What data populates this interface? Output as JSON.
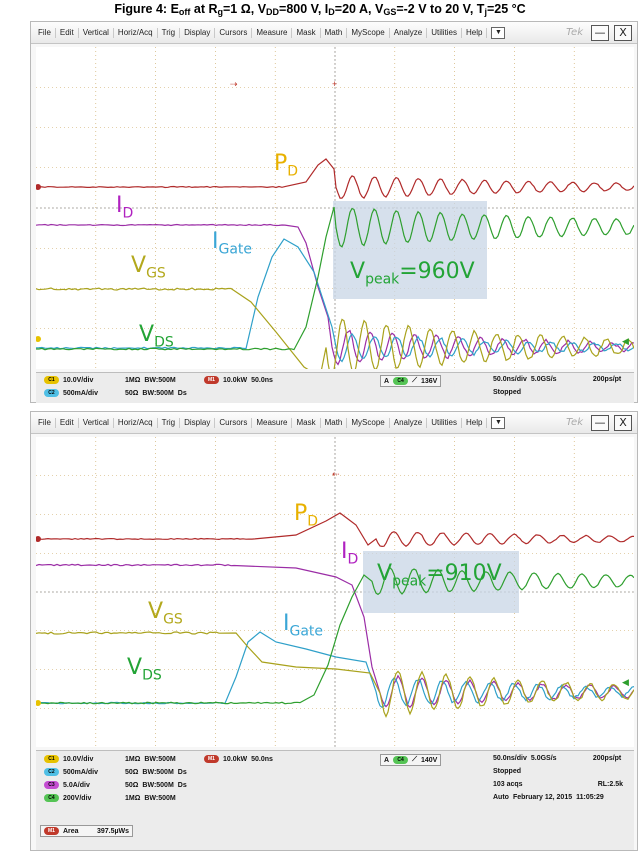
{
  "figure_title": {
    "prefix": "Figure 4: E",
    "eoff_sub": "off",
    "mid1": " at R",
    "rg_sub": "g",
    "mid2": "=1 Ω, V",
    "vdd_sub": "DD",
    "mid3": "=800 V, I",
    "id_sub": "D",
    "mid4": "=20 A, V",
    "vgs_sub": "GS",
    "mid5": "=-2 V to 20 V, T",
    "tj_sub": "j",
    "suffix": "=25 °C"
  },
  "menu": [
    "File",
    "Edit",
    "Vertical",
    "Horiz/Acq",
    "Trig",
    "Display",
    "Cursors",
    "Measure",
    "Mask",
    "Math",
    "MyScope",
    "Analyze",
    "Utilities",
    "Help"
  ],
  "menu_drop": "▼",
  "tek": "Tek",
  "minimize": "—",
  "close": "X",
  "colors": {
    "pd": "#b02a2a",
    "id": "#9b2da6",
    "igate": "#2fa0c9",
    "vgs": "#a9a21c",
    "vds": "#2e9f2e",
    "label_pd": "#e8b100",
    "label_id": "#b021c0",
    "label_igate": "#3aa6d6",
    "label_vgs": "#b3a81c",
    "label_vds": "#23a436",
    "label_vpeak": "#23a436",
    "highlight": "#c8d6e6"
  },
  "labels": {
    "p": "P",
    "p_sub": "D",
    "i": "I",
    "i_sub": "D",
    "ig": "I",
    "ig_sub": "Gate",
    "vg": "V",
    "vg_sub": "GS",
    "vd": "V",
    "vd_sub": "DS",
    "vp": "V",
    "vp_sub": "peak"
  },
  "scope1": {
    "vpeak_value": "=960V",
    "ch1_scale": "10.0V/div",
    "ch1_imp": "1MΩ",
    "ch1_bw": "BW:500M",
    "ch2_scale": "500mA/div",
    "ch2_imp": "50Ω",
    "ch2_bw": "BW:500M",
    "ch2_extra": "Ds",
    "math_scale": "10.0kW",
    "math_time": "50.0ns",
    "trig_level": "136V",
    "timebase": "50.0ns/div",
    "sample_rate": "5.0GS/s",
    "resolution": "200ps/pt",
    "run_state": "Stopped",
    "chip_c1": "C1",
    "chip_c2": "C2",
    "chip_m1": "M1",
    "chip_trig": "C4"
  },
  "scope2": {
    "vpeak_value": "=910V",
    "ch1_scale": "10.0V/div",
    "ch1_imp": "1MΩ",
    "ch1_bw": "BW:500M",
    "ch2_scale": "500mA/div",
    "ch2_imp": "50Ω",
    "ch2_bw": "BW:500M",
    "ch2_extra": "Ds",
    "ch3_scale": "5.0A/div",
    "ch3_imp": "50Ω",
    "ch3_bw": "BW:500M",
    "ch3_extra": "Ds",
    "ch4_scale": "200V/div",
    "ch4_imp": "1MΩ",
    "ch4_bw": "BW:500M",
    "math_scale": "10.0kW",
    "math_time": "50.0ns",
    "trig_level": "140V",
    "timebase": "50.0ns/div",
    "sample_rate": "5.0GS/s",
    "resolution": "200ps/pt",
    "run_state": "Stopped",
    "acqs": "103 acqs",
    "record_length": "RL:2.5k",
    "mode": "Auto",
    "date": "February 12, 2015",
    "time": "11:05:29",
    "meas_label": "Area",
    "meas_value": "397.5µWs",
    "chip_c1": "C1",
    "chip_c2": "C2",
    "chip_c3": "C3",
    "chip_c4": "C4",
    "chip_m1": "M1",
    "chip_trig": "C4",
    "chip_meas": "M1"
  }
}
